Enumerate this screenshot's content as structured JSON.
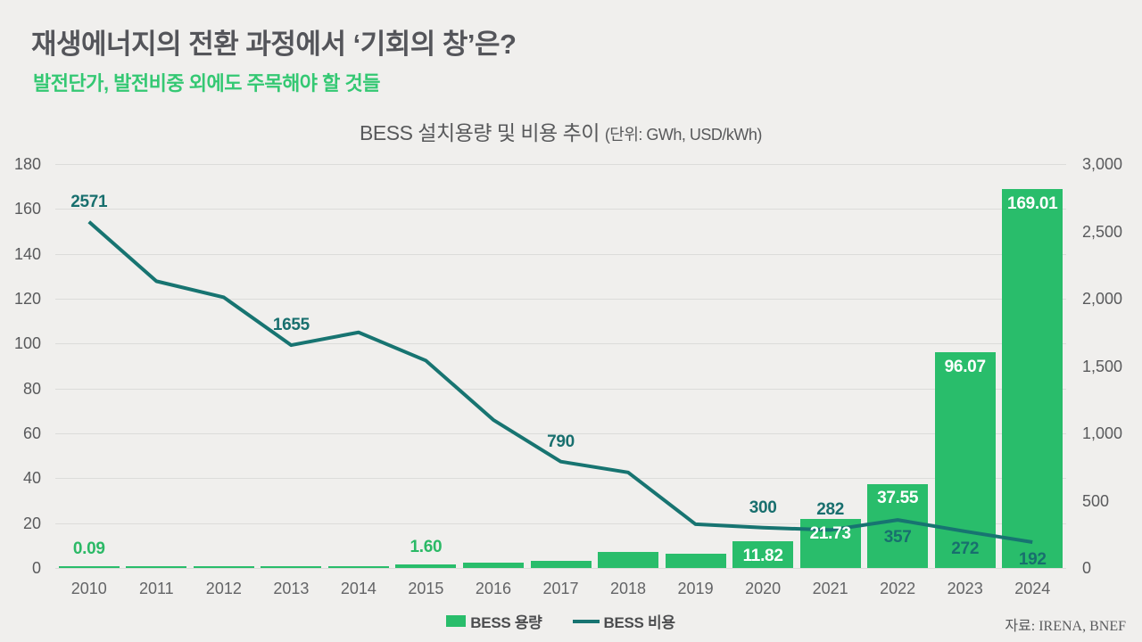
{
  "header": {
    "title": "재생에너지의 전환 과정에서 ‘기회의 창’은?",
    "subtitle": "발전단가, 발전비중 외에도 주목해야 할 것들"
  },
  "chart": {
    "title": "BESS 설치용량 및 비용 추이",
    "unit": "(단위: GWh, USD/kWh)"
  },
  "chart_data": {
    "type": "bar+line combo",
    "categories": [
      "2010",
      "2011",
      "2012",
      "2013",
      "2014",
      "2015",
      "2016",
      "2017",
      "2018",
      "2019",
      "2020",
      "2021",
      "2022",
      "2023",
      "2024"
    ],
    "series": [
      {
        "name": "BESS 용량",
        "type": "bar",
        "axis": "left",
        "color": "#29bd6b",
        "values": [
          0.09,
          0.1,
          0.15,
          0.25,
          0.5,
          1.6,
          2.2,
          3.2,
          7.0,
          6.3,
          11.82,
          21.73,
          37.55,
          96.07,
          169.01
        ]
      },
      {
        "name": "BESS 비용",
        "type": "line",
        "axis": "right",
        "color": "#177471",
        "values": [
          2571,
          2130,
          2010,
          1655,
          1750,
          1540,
          1100,
          790,
          710,
          325,
          300,
          282,
          357,
          272,
          192
        ]
      }
    ],
    "left_axis": {
      "min": 0,
      "max": 180,
      "ticks": [
        "180",
        "160",
        "140",
        "120",
        "100",
        "80",
        "60",
        "40",
        "20",
        "0"
      ]
    },
    "right_axis": {
      "min": 0,
      "max": 3000,
      "ticks": [
        "3,000",
        "2,500",
        "2,000",
        "1,500",
        "1,000",
        "500",
        "0"
      ]
    },
    "bar_labels": [
      {
        "index": 0,
        "text": "0.09",
        "style": "green-above"
      },
      {
        "index": 5,
        "text": "1.60",
        "style": "green-above"
      },
      {
        "index": 10,
        "text": "11.82",
        "style": "white-inside"
      },
      {
        "index": 11,
        "text": "21.73",
        "style": "white-inside"
      },
      {
        "index": 12,
        "text": "37.55",
        "style": "white-inside"
      },
      {
        "index": 13,
        "text": "96.07",
        "style": "white-inside"
      },
      {
        "index": 14,
        "text": "169.01",
        "style": "white-inside"
      }
    ],
    "line_labels": [
      {
        "index": 0,
        "text": "2571",
        "pos": "above"
      },
      {
        "index": 3,
        "text": "1655",
        "pos": "above"
      },
      {
        "index": 7,
        "text": "790",
        "pos": "above"
      },
      {
        "index": 10,
        "text": "300",
        "pos": "above"
      },
      {
        "index": 11,
        "text": "282",
        "pos": "above"
      },
      {
        "index": 12,
        "text": "357",
        "pos": "below"
      },
      {
        "index": 13,
        "text": "272",
        "pos": "below"
      },
      {
        "index": 14,
        "text": "192",
        "pos": "below"
      }
    ],
    "grid": true,
    "legend_position": "bottom-center"
  },
  "legend": {
    "capacity": "BESS 용량",
    "cost": "BESS 비용"
  },
  "footer": {
    "source": "자료: IRENA, BNEF"
  },
  "colors": {
    "background": "#f0efed",
    "bar_green": "#29bd6b",
    "line_teal": "#177471",
    "subtitle_green": "#34c873",
    "title_gray": "#54555a",
    "axis_gray": "#595a5c",
    "gridline": "#dcdcda",
    "green_label": "#2bb966",
    "teal_label": "#186f6e"
  }
}
